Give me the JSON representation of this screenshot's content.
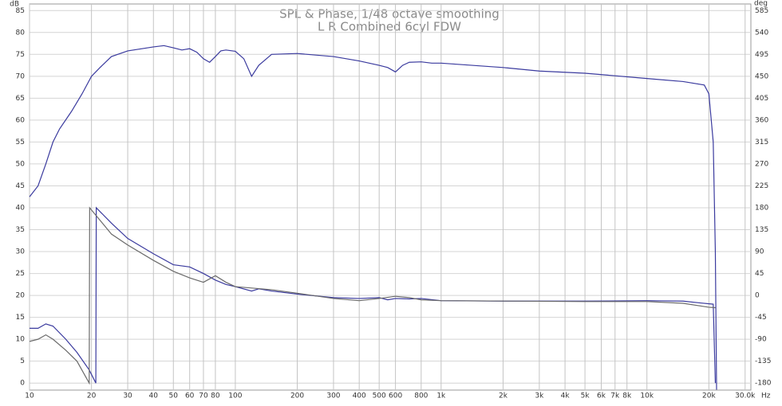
{
  "chart_data": {
    "type": "line",
    "title": "SPL & Phase, 1/48 octave smoothing",
    "subtitle": "L R Combined 6cyl FDW",
    "y_label": "dB",
    "y2_label": "deg",
    "x_label": "Hz",
    "log_x": true,
    "grid": true,
    "xlim": [
      10,
      32000
    ],
    "ylim": [
      -1.6,
      86.5
    ],
    "y2lim": [
      -194.4,
      598.5
    ],
    "xticks": [
      10,
      20,
      30,
      40,
      50,
      60,
      70,
      80,
      100,
      200,
      300,
      400,
      500,
      600,
      800,
      {
        "value": 1000,
        "label": "1k"
      },
      {
        "value": 2000,
        "label": "2k"
      },
      {
        "value": 3000,
        "label": "3k"
      },
      {
        "value": 4000,
        "label": "4k"
      },
      {
        "value": 5000,
        "label": "5k"
      },
      {
        "value": 6000,
        "label": "6k"
      },
      {
        "value": 7000,
        "label": "7k"
      },
      {
        "value": 8000,
        "label": "8k"
      },
      {
        "value": 10000,
        "label": "10k"
      },
      {
        "value": 20000,
        "label": "20k"
      },
      {
        "value": 30000,
        "label": "30.0k"
      }
    ],
    "yticks": [
      0,
      5,
      10,
      15,
      20,
      25,
      30,
      35,
      40,
      45,
      50,
      55,
      60,
      65,
      70,
      75,
      80,
      85
    ],
    "y2ticks": [
      -180,
      -135,
      -90,
      -45,
      0,
      45,
      90,
      135,
      180,
      225,
      270,
      315,
      360,
      405,
      450,
      495,
      540,
      585
    ],
    "series": [
      {
        "color": "#3a3a9e",
        "axis": "y",
        "x": [
          10,
          11,
          12,
          13,
          14,
          16,
          18,
          20,
          22,
          25,
          30,
          40,
          45,
          50,
          55,
          60,
          65,
          70,
          75,
          80,
          85,
          90,
          100,
          110,
          120,
          130,
          150,
          200,
          300,
          400,
          500,
          550,
          600,
          650,
          700,
          800,
          900,
          1000,
          2000,
          3000,
          5000,
          10000,
          15000,
          19000,
          20000,
          21000,
          21500,
          21800
        ],
        "values": [
          42.5,
          45,
          50,
          55,
          58,
          62,
          66,
          70,
          72,
          74.5,
          75.8,
          76.7,
          77,
          76.5,
          76,
          76.3,
          75.5,
          74,
          73.2,
          74.5,
          75.8,
          76,
          75.7,
          74,
          70,
          72.5,
          75,
          75.2,
          74.5,
          73.5,
          72.5,
          72,
          71,
          72.5,
          73.2,
          73.3,
          73,
          73,
          72,
          71.2,
          70.7,
          69.5,
          68.8,
          68,
          66,
          55,
          30,
          -1.5
        ]
      },
      {
        "color": "#3a3a9e",
        "axis": "y2",
        "x": [
          10,
          11,
          12,
          13,
          15,
          17,
          19.5,
          21,
          21.1,
          25,
          30,
          40,
          50,
          60,
          70,
          80,
          90,
          100,
          120,
          130,
          150,
          200,
          300,
          400,
          500,
          550,
          600,
          700,
          800,
          1000,
          2000,
          5000,
          10000,
          15000,
          18000,
          21000,
          21500
        ],
        "values": [
          -67.5,
          -67.5,
          -58.5,
          -63,
          -90,
          -117,
          -153,
          -180,
          180,
          148.5,
          117,
          85.5,
          63,
          58.5,
          45,
          31.5,
          22.5,
          18,
          9,
          13.5,
          9,
          2.7,
          -4.5,
          -6.3,
          -4.5,
          -9,
          -6.3,
          -7.2,
          -6.3,
          -10.8,
          -11.7,
          -11.7,
          -10.8,
          -11.7,
          -15.3,
          -18,
          -180
        ]
      },
      {
        "color": "#6a6a6a",
        "axis": "y2",
        "x": [
          10,
          11,
          12,
          13,
          15,
          17,
          19.5,
          19.6,
          25,
          30,
          40,
          50,
          60,
          70,
          80,
          90,
          100,
          150,
          200,
          300,
          400,
          500,
          600,
          700,
          800,
          1000,
          5000,
          10000,
          15000,
          20000,
          21500
        ],
        "values": [
          -94.5,
          -90,
          -81,
          -90,
          -112.5,
          -135,
          -180,
          180,
          126,
          103.5,
          72,
          49.5,
          36,
          27,
          40.5,
          27,
          18,
          11.7,
          4.5,
          -6.3,
          -10.8,
          -6.3,
          -1.8,
          -4.5,
          -9,
          -10.8,
          -12.6,
          -12.6,
          -16.2,
          -24.3,
          -25.2
        ]
      }
    ]
  }
}
